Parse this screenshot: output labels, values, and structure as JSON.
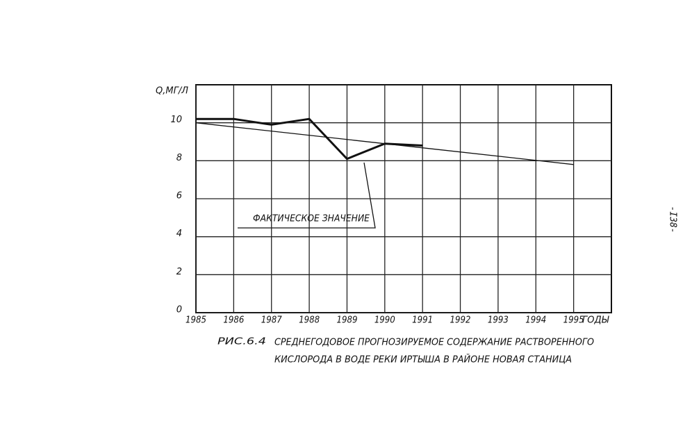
{
  "chart_data": {
    "type": "line",
    "y_label": "Q,МГ/Л",
    "x_label": "ГОДЫ",
    "xlim": [
      1985,
      1996
    ],
    "xticks": [
      1985,
      1986,
      1987,
      1988,
      1989,
      1990,
      1991,
      1992,
      1993,
      1994,
      1995
    ],
    "ylim": [
      0,
      12
    ],
    "yticks": [
      0,
      2,
      4,
      6,
      8,
      10
    ],
    "grid": true,
    "series": [
      {
        "name": "ФАКТИЧЕСКОЕ ЗНАЧЕНИЕ",
        "color": "#111111",
        "x": [
          1985,
          1986,
          1987,
          1988,
          1989,
          1990,
          1991
        ],
        "values": [
          10.2,
          10.2,
          9.9,
          10.2,
          8.1,
          8.9,
          8.8
        ]
      },
      {
        "color": "#111111",
        "x": [
          1985,
          1995
        ],
        "values": [
          10.0,
          7.8
        ]
      }
    ],
    "figure_label": "РИС.6.4",
    "caption": [
      "СРЕДНЕГОДОВОЕ ПРОГНОЗИРУЕМОЕ СОДЕРЖАНИЕ РАСТВОРЕННОГО",
      "КИСЛОРОДА В ВОДЕ РЕКИ ИРТЫША В РАЙОНЕ НОВАЯ СТАНИЦА"
    ]
  },
  "page_number": "-I38-"
}
